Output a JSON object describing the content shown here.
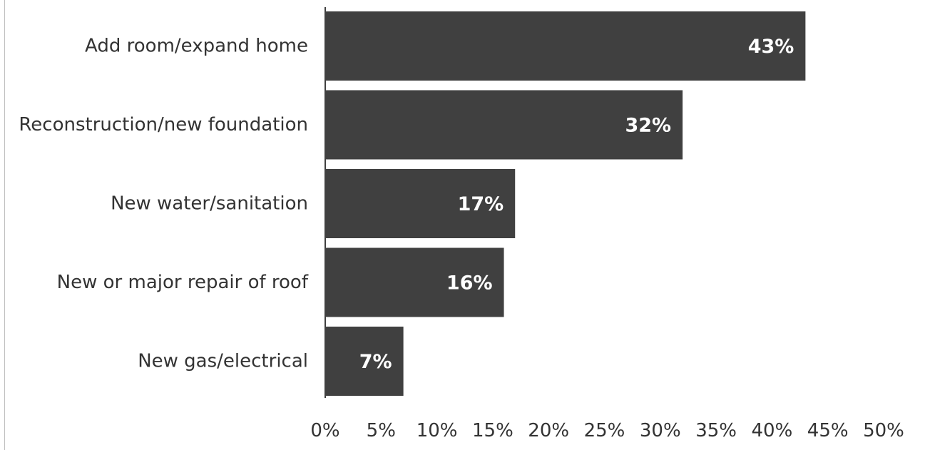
{
  "chart_data": {
    "type": "bar",
    "orientation": "horizontal",
    "categories": [
      "Add room/expand home",
      "Reconstruction/new foundation",
      "New water/sanitation",
      "New or major repair of roof",
      "New gas/electrical"
    ],
    "values": [
      43,
      32,
      17,
      16,
      7
    ],
    "data_labels": [
      "43%",
      "32%",
      "17%",
      "16%",
      "7%"
    ],
    "xlim": [
      0,
      50
    ],
    "x_ticks": [
      0,
      5,
      10,
      15,
      20,
      25,
      30,
      35,
      40,
      45,
      50
    ],
    "x_tick_labels": [
      "0%",
      "5%",
      "10%",
      "15%",
      "20%",
      "25%",
      "30%",
      "35%",
      "40%",
      "45%",
      "50%"
    ],
    "title": "",
    "xlabel": "",
    "ylabel": "",
    "grid": false,
    "legend": "none",
    "bar_color": "#404040",
    "data_label_color": "#ffffff",
    "text_color": "#333333"
  }
}
